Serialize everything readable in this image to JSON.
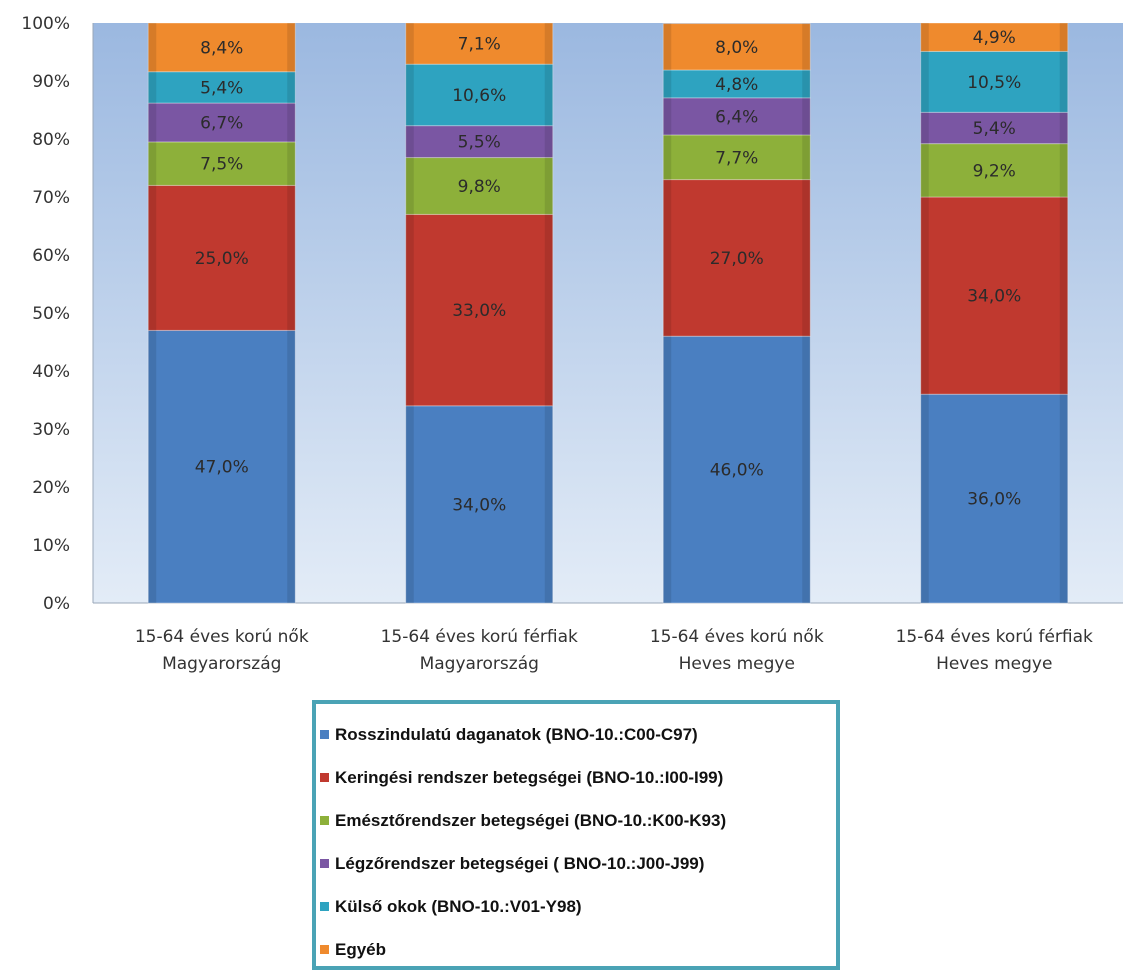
{
  "chart_data": {
    "type": "bar",
    "stacked": true,
    "y_axis": {
      "ticks": [
        "0%",
        "10%",
        "20%",
        "30%",
        "40%",
        "50%",
        "60%",
        "70%",
        "80%",
        "90%",
        "100%"
      ],
      "ylim": [
        0,
        100
      ],
      "unit": "%"
    },
    "grid": false,
    "legend_position": "bottom",
    "categories": [
      [
        "15-64 éves korú nők",
        "Magyarország"
      ],
      [
        "15-64 éves korú férfiak",
        "Magyarország"
      ],
      [
        "15-64 éves korú nők",
        "Heves megye"
      ],
      [
        "15-64 éves korú férfiak",
        "Heves megye"
      ]
    ],
    "series": [
      {
        "name": "Rosszindulatú daganatok  (BNO-10.:C00-C97)",
        "color": "#4a7fc1",
        "values": [
          47.0,
          34.0,
          46.0,
          36.0
        ],
        "labels": [
          "47,0%",
          "34,0%",
          "46,0%",
          "36,0%"
        ]
      },
      {
        "name": "Keringési rendszer betegségei (BNO-10.:I00-I99)",
        "color": "#c0392f",
        "values": [
          25.0,
          33.0,
          27.0,
          34.0
        ],
        "labels": [
          "25,0%",
          "33,0%",
          "27,0%",
          "34,0%"
        ]
      },
      {
        "name": "Emésztőrendszer betegségei (BNO-10.:K00-K93)",
        "color": "#8db03a",
        "values": [
          7.5,
          9.8,
          7.7,
          9.2
        ],
        "labels": [
          "7,5%",
          "9,8%",
          "7,7%",
          "9,2%"
        ]
      },
      {
        "name": "Légzőrendszer betegségei ( BNO-10.:J00-J99)",
        "color": "#7a56a3",
        "values": [
          6.7,
          5.5,
          6.4,
          5.4
        ],
        "labels": [
          "6,7%",
          "5,5%",
          "6,4%",
          "5,4%"
        ]
      },
      {
        "name": "Külső okok (BNO-10.:V01-Y98)",
        "color": "#2ea3c0",
        "values": [
          5.4,
          10.6,
          4.8,
          10.5
        ],
        "labels": [
          "5,4%",
          "10,6%",
          "4,8%",
          "10,5%"
        ]
      },
      {
        "name": "Egyéb",
        "color": "#ef8a2d",
        "values": [
          8.4,
          7.1,
          8.0,
          4.9
        ],
        "labels": [
          "8,4%",
          "7,1%",
          "8,0%",
          "4,9%"
        ]
      }
    ]
  }
}
